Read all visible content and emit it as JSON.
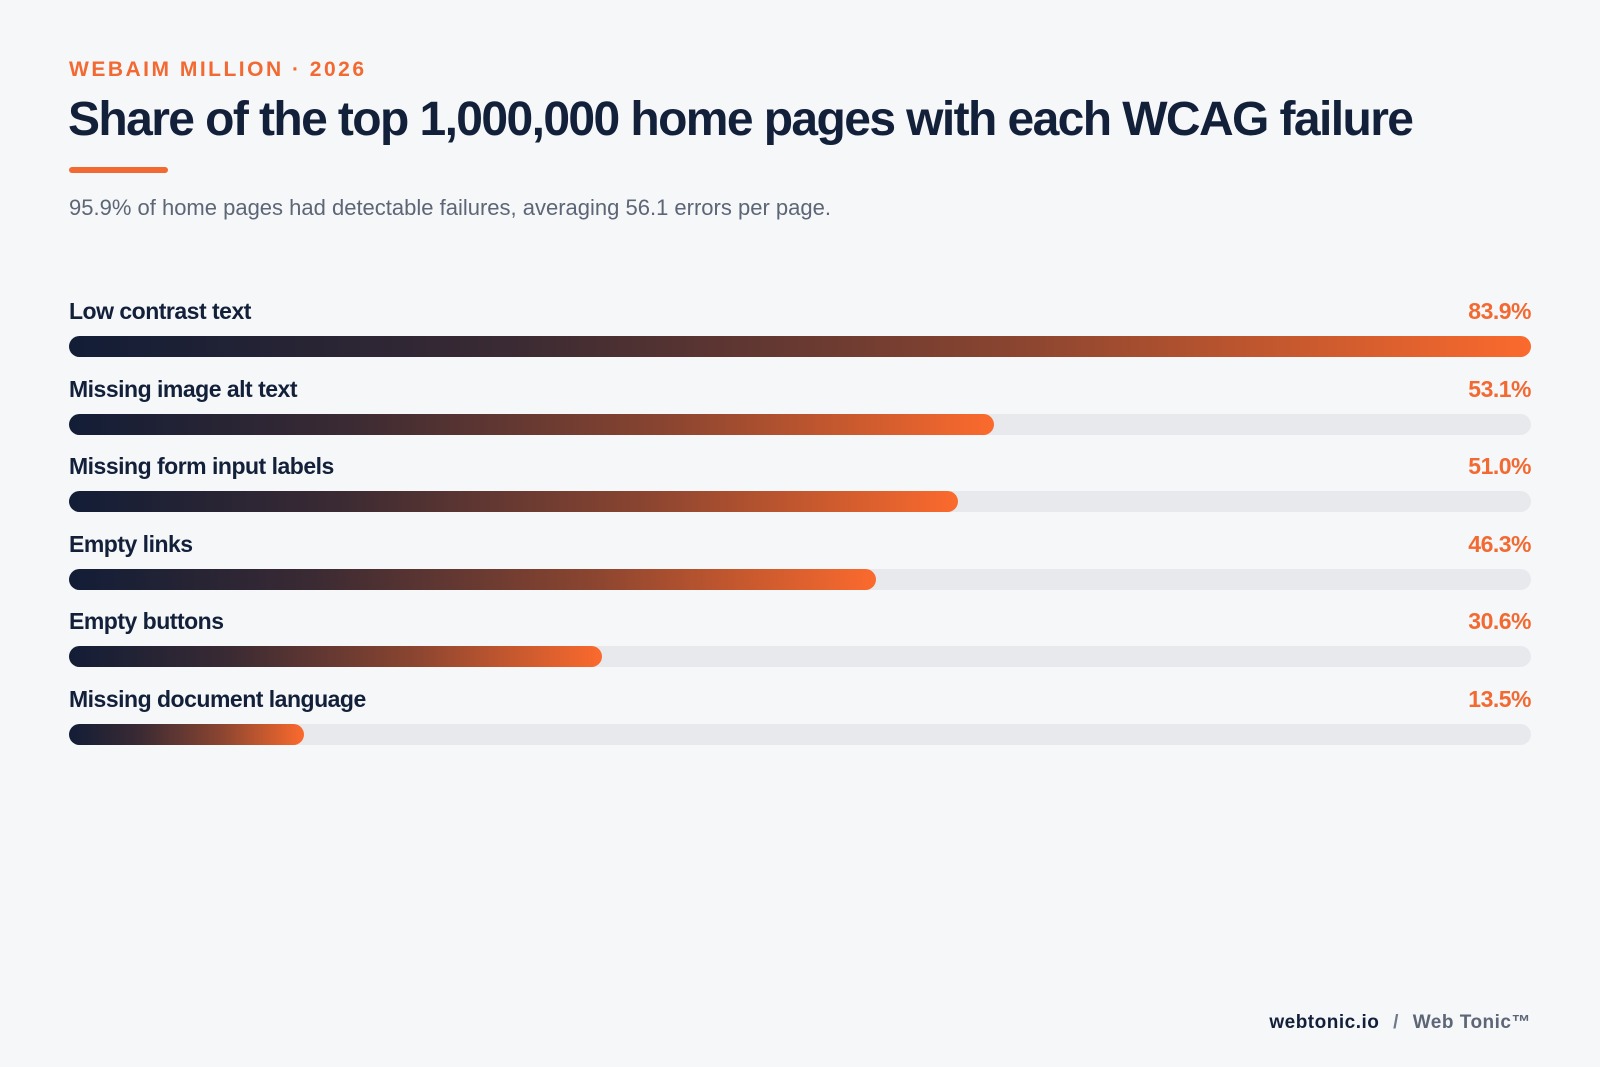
{
  "header": {
    "kicker": "WEBAIM MILLION · 2026",
    "title": "Share of the top 1,000,000 home pages with each WCAG failure",
    "subtitle": "95.9% of home pages had detectable failures, averaging 56.1 errors per page."
  },
  "chart_data": {
    "type": "bar",
    "orientation": "horizontal",
    "title": "Share of the top 1,000,000 home pages with each WCAG failure",
    "categories": [
      "Low contrast text",
      "Missing image alt text",
      "Missing form input labels",
      "Empty links",
      "Empty buttons",
      "Missing document language"
    ],
    "values": [
      83.9,
      53.1,
      51.0,
      46.3,
      30.6,
      13.5
    ],
    "value_labels": [
      "83.9%",
      "53.1%",
      "51.0%",
      "46.3%",
      "30.6%",
      "13.5%"
    ],
    "xlim": [
      0,
      83.9
    ],
    "grid": false,
    "colors": {
      "bar_start": "#121d36",
      "bar_end": "#fb6a2d",
      "track": "#e7e9ed",
      "value": "#f26a32"
    }
  },
  "footer": {
    "site": "webtonic.io",
    "separator": "/",
    "brand": "Web Tonic™"
  },
  "colors": {
    "accent": "#f26a32",
    "ink": "#13203a",
    "background": "#f6f7f9"
  }
}
